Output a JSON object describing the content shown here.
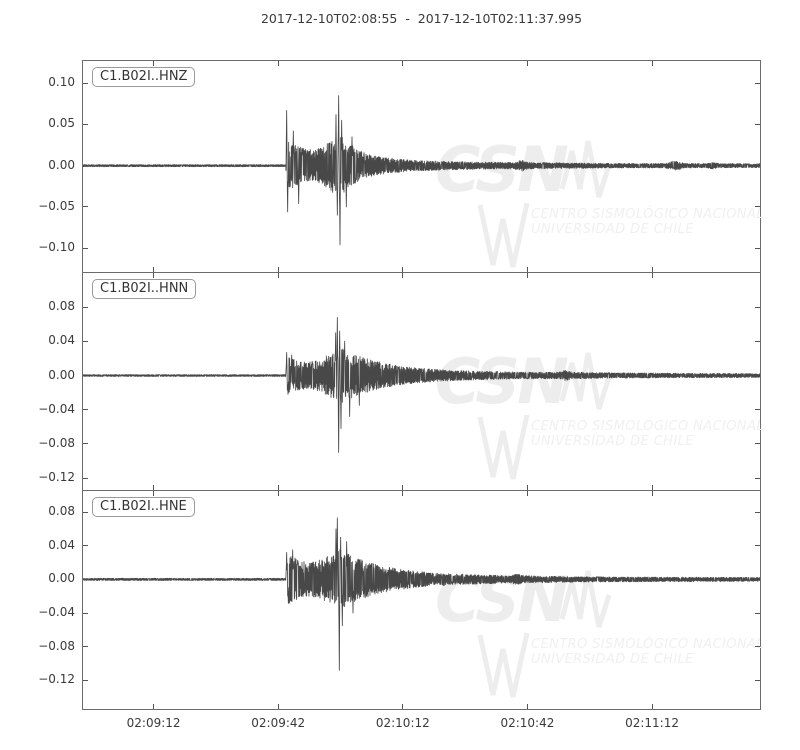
{
  "title": "2017-12-10T02:08:55  -  2017-12-10T02:11:37.995",
  "watermark": {
    "logo": "CSN",
    "line1": "CENTRO SISMOLÓGICO NACIONAL",
    "line2": "UNIVERSIDAD DE CHILE"
  },
  "colors": {
    "trace": "#484848",
    "spine": "#6b6b6b",
    "tick": "#555555",
    "text": "#3a3a3a",
    "watermark": "#ededed",
    "background": "#ffffff"
  },
  "chart_data": {
    "type": "line",
    "subtype": "seismogram-waveforms",
    "title": "2017-12-10T02:08:55  -  2017-12-10T02:11:37.995",
    "time_start": "2017-12-10T02:08:55",
    "time_end": "2017-12-10T02:11:37.995",
    "duration_s": 162.995,
    "grid": false,
    "xticks": [
      {
        "label": "02:09:12",
        "t": 17
      },
      {
        "label": "02:09:42",
        "t": 47
      },
      {
        "label": "02:10:12",
        "t": 77
      },
      {
        "label": "02:10:42",
        "t": 107
      },
      {
        "label": "02:11:12",
        "t": 137
      }
    ],
    "panels": [
      {
        "id": "C1.B02I..HNZ",
        "seed": 42,
        "ylim": [
          -0.129,
          0.127
        ],
        "yticks": [
          {
            "label": "0.10",
            "value": 0.1
          },
          {
            "label": "0.05",
            "value": 0.05
          },
          {
            "label": "0.00",
            "value": 0.0
          },
          {
            "label": "−0.05",
            "value": -0.05
          },
          {
            "label": "−0.10",
            "value": -0.1
          }
        ],
        "p_onset_s": 49,
        "s_arrival_s": 61.3,
        "peak_positive": 0.085,
        "peak_negative": -0.096,
        "envelope": [
          [
            0,
            0.0013
          ],
          [
            48.8,
            0.0013
          ],
          [
            49.1,
            0.032
          ],
          [
            50,
            0.028
          ],
          [
            52,
            0.024
          ],
          [
            54,
            0.02
          ],
          [
            56,
            0.019
          ],
          [
            58,
            0.024
          ],
          [
            60,
            0.032
          ],
          [
            61.5,
            0.04
          ],
          [
            63,
            0.032
          ],
          [
            65,
            0.024
          ],
          [
            67,
            0.017
          ],
          [
            70,
            0.012
          ],
          [
            74,
            0.009
          ],
          [
            79,
            0.0068
          ],
          [
            86,
            0.0054
          ],
          [
            94,
            0.0046
          ],
          [
            102,
            0.004
          ],
          [
            104,
            0.0042
          ],
          [
            105.5,
            0.007
          ],
          [
            107,
            0.0042
          ],
          [
            112,
            0.0036
          ],
          [
            120,
            0.0032
          ],
          [
            130,
            0.0028
          ],
          [
            140,
            0.0028
          ],
          [
            142.5,
            0.006
          ],
          [
            145,
            0.0028
          ],
          [
            150,
            0.0026
          ],
          [
            151.5,
            0.0045
          ],
          [
            153,
            0.0026
          ],
          [
            163,
            0.0024
          ]
        ],
        "spikes": [
          [
            49.05,
            0.067
          ],
          [
            49.3,
            -0.056
          ],
          [
            50.6,
            0.042
          ],
          [
            51.9,
            -0.046
          ],
          [
            60.9,
            0.062
          ],
          [
            61.2,
            -0.06
          ],
          [
            61.55,
            0.085
          ],
          [
            61.85,
            -0.096
          ],
          [
            62.3,
            0.055
          ],
          [
            63.4,
            -0.05
          ],
          [
            64.8,
            0.035
          ]
        ]
      },
      {
        "id": "C1.B02I..HNN",
        "seed": 137,
        "ylim": [
          -0.134,
          0.12
        ],
        "yticks": [
          {
            "label": "0.08",
            "value": 0.08
          },
          {
            "label": "0.04",
            "value": 0.04
          },
          {
            "label": "0.00",
            "value": 0.0
          },
          {
            "label": "−0.04",
            "value": -0.04
          },
          {
            "label": "−0.08",
            "value": -0.08
          },
          {
            "label": "−0.12",
            "value": -0.12
          }
        ],
        "p_onset_s": 49,
        "s_arrival_s": 61.3,
        "peak_positive": 0.068,
        "peak_negative": -0.09,
        "envelope": [
          [
            0,
            0.0011
          ],
          [
            48.8,
            0.0011
          ],
          [
            49.1,
            0.022
          ],
          [
            50,
            0.02
          ],
          [
            52,
            0.017
          ],
          [
            54,
            0.016
          ],
          [
            56,
            0.017
          ],
          [
            58,
            0.021
          ],
          [
            60,
            0.028
          ],
          [
            61.8,
            0.034
          ],
          [
            63.5,
            0.029
          ],
          [
            65,
            0.026
          ],
          [
            67,
            0.022
          ],
          [
            69,
            0.019
          ],
          [
            72,
            0.015
          ],
          [
            76,
            0.0115
          ],
          [
            81,
            0.0085
          ],
          [
            88,
            0.0063
          ],
          [
            95,
            0.0052
          ],
          [
            103,
            0.0043
          ],
          [
            110,
            0.0038
          ],
          [
            114.5,
            0.004
          ],
          [
            116,
            0.0062
          ],
          [
            118,
            0.004
          ],
          [
            125,
            0.0033
          ],
          [
            135,
            0.0029
          ],
          [
            148,
            0.0026
          ],
          [
            163,
            0.0023
          ]
        ],
        "spikes": [
          [
            49.05,
            0.027
          ],
          [
            49.35,
            -0.022
          ],
          [
            50.2,
            0.024
          ],
          [
            60.8,
            0.05
          ],
          [
            61.2,
            0.068
          ],
          [
            61.55,
            -0.09
          ],
          [
            61.8,
            0.052
          ],
          [
            62.1,
            -0.062
          ],
          [
            63.0,
            0.04
          ],
          [
            64.2,
            -0.048
          ],
          [
            66.5,
            -0.035
          ]
        ]
      },
      {
        "id": "C1.B02I..HNE",
        "seed": 901,
        "ylim": [
          -0.154,
          0.105
        ],
        "yticks": [
          {
            "label": "0.08",
            "value": 0.08
          },
          {
            "label": "0.04",
            "value": 0.04
          },
          {
            "label": "0.00",
            "value": 0.0
          },
          {
            "label": "−0.04",
            "value": -0.04
          },
          {
            "label": "−0.08",
            "value": -0.08
          },
          {
            "label": "−0.12",
            "value": -0.12
          }
        ],
        "p_onset_s": 49,
        "s_arrival_s": 61.3,
        "peak_positive": 0.073,
        "peak_negative": -0.108,
        "envelope": [
          [
            0,
            0.0013
          ],
          [
            48.8,
            0.0013
          ],
          [
            49.1,
            0.03
          ],
          [
            50,
            0.028
          ],
          [
            52,
            0.023
          ],
          [
            54,
            0.02
          ],
          [
            56,
            0.021
          ],
          [
            58,
            0.025
          ],
          [
            60,
            0.031
          ],
          [
            61.8,
            0.036
          ],
          [
            63.5,
            0.031
          ],
          [
            65,
            0.028
          ],
          [
            67,
            0.024
          ],
          [
            69,
            0.02
          ],
          [
            72,
            0.016
          ],
          [
            76,
            0.0125
          ],
          [
            81,
            0.0092
          ],
          [
            88,
            0.0068
          ],
          [
            95,
            0.0055
          ],
          [
            103,
            0.0045
          ],
          [
            104.5,
            0.0065
          ],
          [
            106,
            0.0045
          ],
          [
            112,
            0.0038
          ],
          [
            120,
            0.0033
          ],
          [
            130,
            0.0029
          ],
          [
            142,
            0.0027
          ],
          [
            155,
            0.0025
          ],
          [
            163,
            0.0023
          ]
        ],
        "spikes": [
          [
            49.05,
            0.032
          ],
          [
            49.4,
            -0.028
          ],
          [
            50.5,
            0.035
          ],
          [
            60.9,
            0.06
          ],
          [
            61.25,
            0.073
          ],
          [
            61.7,
            -0.108
          ],
          [
            62.0,
            0.05
          ],
          [
            62.4,
            -0.055
          ],
          [
            63.5,
            0.045
          ],
          [
            65.0,
            -0.04
          ]
        ]
      }
    ]
  }
}
